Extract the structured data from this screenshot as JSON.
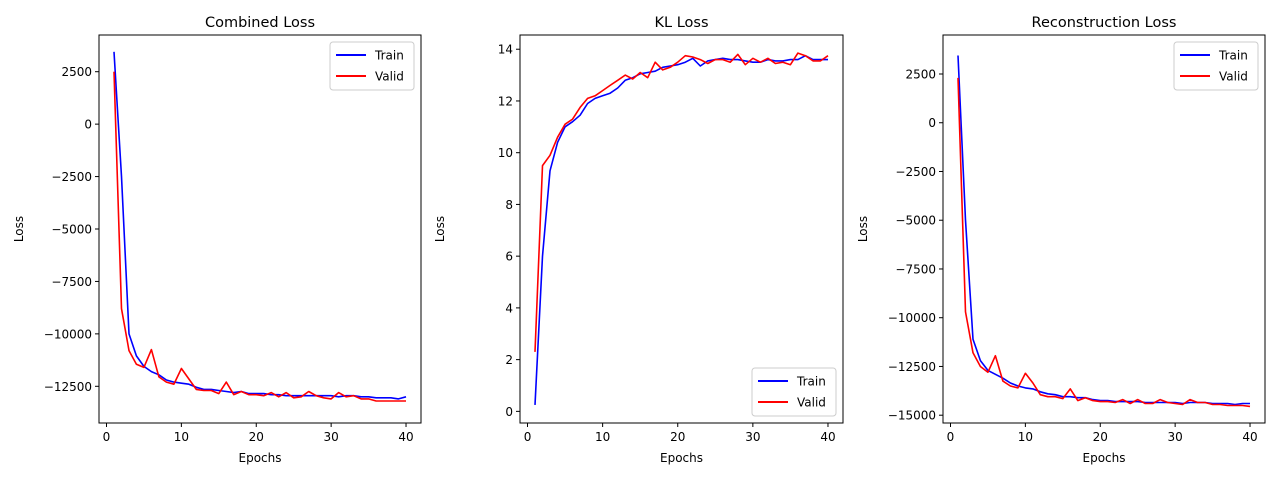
{
  "chart_data": [
    {
      "type": "line",
      "title": "Combined Loss",
      "xlabel": "Epochs",
      "ylabel": "Loss",
      "xlim": [
        -1,
        42
      ],
      "ylim": [
        -14250,
        4250
      ],
      "xticks": [
        0,
        10,
        20,
        30,
        40
      ],
      "yticks": [
        2500,
        0,
        -2500,
        -5000,
        -7500,
        -10000,
        -12500
      ],
      "xtick_labels": [
        "0",
        "10",
        "20",
        "30",
        "40"
      ],
      "ytick_labels": [
        "2500",
        "0",
        "−2500",
        "−5000",
        "−7500",
        "−10000",
        "−12500"
      ],
      "legend_position": "top-right",
      "series": [
        {
          "name": "Train",
          "color": "#0000ff",
          "x": [
            1,
            2,
            3,
            4,
            5,
            6,
            7,
            8,
            9,
            10,
            11,
            12,
            13,
            14,
            15,
            16,
            17,
            18,
            19,
            20,
            21,
            22,
            23,
            24,
            25,
            26,
            27,
            28,
            29,
            30,
            31,
            32,
            33,
            34,
            35,
            36,
            37,
            38,
            39,
            40
          ],
          "values": [
            3450,
            -2500,
            -10000,
            -11050,
            -11550,
            -11800,
            -11950,
            -12200,
            -12300,
            -12350,
            -12400,
            -12550,
            -12650,
            -12650,
            -12700,
            -12750,
            -12800,
            -12750,
            -12850,
            -12850,
            -12850,
            -12900,
            -12900,
            -12950,
            -12950,
            -12950,
            -12950,
            -12950,
            -12950,
            -12950,
            -13000,
            -12950,
            -12950,
            -13000,
            -13000,
            -13050,
            -13050,
            -13050,
            -13100,
            -13000
          ]
        },
        {
          "name": "Valid",
          "color": "#ff0000",
          "x": [
            1,
            2,
            3,
            4,
            5,
            6,
            7,
            8,
            9,
            10,
            11,
            12,
            13,
            14,
            15,
            16,
            17,
            18,
            19,
            20,
            21,
            22,
            23,
            24,
            25,
            26,
            27,
            28,
            29,
            30,
            31,
            32,
            33,
            34,
            35,
            36,
            37,
            38,
            39,
            40
          ],
          "values": [
            2500,
            -8800,
            -10800,
            -11450,
            -11600,
            -10750,
            -12050,
            -12300,
            -12400,
            -11650,
            -12150,
            -12650,
            -12700,
            -12700,
            -12850,
            -12300,
            -12900,
            -12750,
            -12900,
            -12900,
            -12950,
            -12800,
            -13000,
            -12800,
            -13050,
            -13000,
            -12750,
            -12950,
            -13050,
            -13100,
            -12800,
            -13000,
            -12950,
            -13100,
            -13100,
            -13200,
            -13200,
            -13200,
            -13200,
            -13200
          ]
        }
      ]
    },
    {
      "type": "line",
      "title": "KL Loss",
      "xlabel": "Epochs",
      "ylabel": "Loss",
      "xlim": [
        -1,
        42
      ],
      "ylim": [
        -0.45,
        14.55
      ],
      "xticks": [
        0,
        10,
        20,
        30,
        40
      ],
      "yticks": [
        0,
        2,
        4,
        6,
        8,
        10,
        12,
        14
      ],
      "xtick_labels": [
        "0",
        "10",
        "20",
        "30",
        "40"
      ],
      "ytick_labels": [
        "0",
        "2",
        "4",
        "6",
        "8",
        "10",
        "12",
        "14"
      ],
      "legend_position": "bottom-right",
      "series": [
        {
          "name": "Train",
          "color": "#0000ff",
          "x": [
            1,
            2,
            3,
            4,
            5,
            6,
            7,
            8,
            9,
            10,
            11,
            12,
            13,
            14,
            15,
            16,
            17,
            18,
            19,
            20,
            21,
            22,
            23,
            24,
            25,
            26,
            27,
            28,
            29,
            30,
            31,
            32,
            33,
            34,
            35,
            36,
            37,
            38,
            39,
            40
          ],
          "values": [
            0.25,
            6.0,
            9.3,
            10.4,
            11.0,
            11.2,
            11.45,
            11.9,
            12.1,
            12.2,
            12.3,
            12.5,
            12.8,
            12.9,
            13.05,
            13.1,
            13.15,
            13.3,
            13.35,
            13.4,
            13.5,
            13.65,
            13.35,
            13.55,
            13.6,
            13.65,
            13.6,
            13.6,
            13.55,
            13.5,
            13.5,
            13.6,
            13.55,
            13.55,
            13.6,
            13.6,
            13.75,
            13.6,
            13.6,
            13.6
          ]
        },
        {
          "name": "Valid",
          "color": "#ff0000",
          "x": [
            1,
            2,
            3,
            4,
            5,
            6,
            7,
            8,
            9,
            10,
            11,
            12,
            13,
            14,
            15,
            16,
            17,
            18,
            19,
            20,
            21,
            22,
            23,
            24,
            25,
            26,
            27,
            28,
            29,
            30,
            31,
            32,
            33,
            34,
            35,
            36,
            37,
            38,
            39,
            40
          ],
          "values": [
            2.3,
            9.5,
            9.9,
            10.6,
            11.1,
            11.3,
            11.75,
            12.1,
            12.2,
            12.4,
            12.6,
            12.8,
            13.0,
            12.85,
            13.1,
            12.9,
            13.5,
            13.2,
            13.3,
            13.5,
            13.75,
            13.7,
            13.6,
            13.45,
            13.6,
            13.6,
            13.5,
            13.8,
            13.4,
            13.65,
            13.5,
            13.65,
            13.45,
            13.5,
            13.4,
            13.85,
            13.75,
            13.55,
            13.55,
            13.75
          ]
        }
      ]
    },
    {
      "type": "line",
      "title": "Reconstruction Loss",
      "xlabel": "Epochs",
      "ylabel": "Loss",
      "xlim": [
        -1,
        42
      ],
      "ylim": [
        -15400,
        4500
      ],
      "xticks": [
        0,
        10,
        20,
        30,
        40
      ],
      "yticks": [
        2500,
        0,
        -2500,
        -5000,
        -7500,
        -10000,
        -12500,
        -15000
      ],
      "xtick_labels": [
        "0",
        "10",
        "20",
        "30",
        "40"
      ],
      "ytick_labels": [
        "2500",
        "0",
        "−2500",
        "−5000",
        "−7500",
        "−10000",
        "−12500",
        "−15000"
      ],
      "legend_position": "top-right",
      "series": [
        {
          "name": "Train",
          "color": "#0000ff",
          "x": [
            1,
            2,
            3,
            4,
            5,
            6,
            7,
            8,
            9,
            10,
            11,
            12,
            13,
            14,
            15,
            16,
            17,
            18,
            19,
            20,
            21,
            22,
            23,
            24,
            25,
            26,
            27,
            28,
            29,
            30,
            31,
            32,
            33,
            34,
            35,
            36,
            37,
            38,
            39,
            40
          ],
          "values": [
            3450,
            -5000,
            -11100,
            -12200,
            -12700,
            -12900,
            -13100,
            -13350,
            -13500,
            -13600,
            -13650,
            -13800,
            -13900,
            -13950,
            -14050,
            -14050,
            -14100,
            -14100,
            -14200,
            -14250,
            -14250,
            -14300,
            -14300,
            -14300,
            -14300,
            -14350,
            -14350,
            -14350,
            -14350,
            -14350,
            -14400,
            -14350,
            -14350,
            -14350,
            -14400,
            -14400,
            -14400,
            -14450,
            -14400,
            -14400
          ]
        },
        {
          "name": "Valid",
          "color": "#ff0000",
          "x": [
            1,
            2,
            3,
            4,
            5,
            6,
            7,
            8,
            9,
            10,
            11,
            12,
            13,
            14,
            15,
            16,
            17,
            18,
            19,
            20,
            21,
            22,
            23,
            24,
            25,
            26,
            27,
            28,
            29,
            30,
            31,
            32,
            33,
            34,
            35,
            36,
            37,
            38,
            39,
            40
          ],
          "values": [
            2300,
            -9700,
            -11800,
            -12500,
            -12800,
            -11950,
            -13250,
            -13500,
            -13600,
            -12850,
            -13350,
            -13950,
            -14050,
            -14050,
            -14150,
            -13650,
            -14250,
            -14100,
            -14250,
            -14300,
            -14300,
            -14350,
            -14200,
            -14400,
            -14200,
            -14400,
            -14400,
            -14200,
            -14350,
            -14400,
            -14450,
            -14200,
            -14350,
            -14350,
            -14450,
            -14450,
            -14500,
            -14500,
            -14500,
            -14550
          ]
        }
      ]
    }
  ]
}
